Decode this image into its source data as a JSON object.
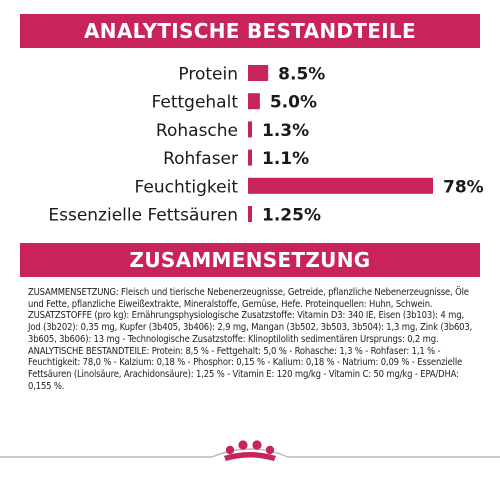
{
  "sections": {
    "analysis_title": "ANALYTISCHE BESTANDTEILE",
    "composition_title": "ZUSAMMENSETZUNG"
  },
  "composition_text": "ZUSAMMENSETZUNG: Fleisch und tierische Nebenerzeugnisse, Getreide, pflanzliche Nebenerzeugnisse, Öle und Fette, pflanzliche Eiweißextrakte, Mineralstoffe, Gemüse, Hefe. Proteinquellen: Huhn, Schwein. ZUSATZSTOFFE (pro kg): Ernährungsphysiologische Zusatzstoffe: Vitamin D3: 340 IE, Eisen (3b103): 4 mg, Jod (3b202): 0,35 mg, Kupfer (3b405, 3b406): 2,9 mg, Mangan (3b502, 3b503, 3b504): 1,3 mg, Zink (3b603, 3b605, 3b606): 13 mg - Technologische Zusatzstoffe: Klinoptilolith sedimentären Ursprungs: 0,2 mg. ANALYTISCHE BESTANDTEILE: Protein: 8,5 % - Fettgehalt: 5,0 % - Rohasche: 1,3 % - Rohfaser: 1,1 % - Feuchtigkeit: 78,0 % - Kalzium: 0,18 % - Phosphor: 0,15 % - Kalium: 0,18 % - Natrium: 0,09 % - Essenzielle Fettsäuren (Linolsäure, Arachidonsäure): 1,25 % - Vitamin E: 120 mg/kg - Vitamin C: 50 mg/kg - EPA/DHA: 0,155 %.",
  "colors": {
    "accent": "#c8235a",
    "footer_line": "#b8b8b8"
  },
  "logo_icon": "royal-canin-crown-icon",
  "chart_data": {
    "type": "bar",
    "orientation": "horizontal",
    "categories": [
      "Protein",
      "Fettgehalt",
      "Rohasche",
      "Rohfaser",
      "Feuchtigkeit",
      "Essenzielle Fettsäuren"
    ],
    "values": [
      8.5,
      5.0,
      1.3,
      1.1,
      78,
      1.25
    ],
    "value_labels": [
      "8.5%",
      "5.0%",
      "1.3%",
      "1.1%",
      "78%",
      "1.25%"
    ],
    "title": "",
    "xlabel": "",
    "ylabel": "",
    "xlim": [
      0,
      78
    ],
    "grid": false,
    "legend": "none"
  }
}
